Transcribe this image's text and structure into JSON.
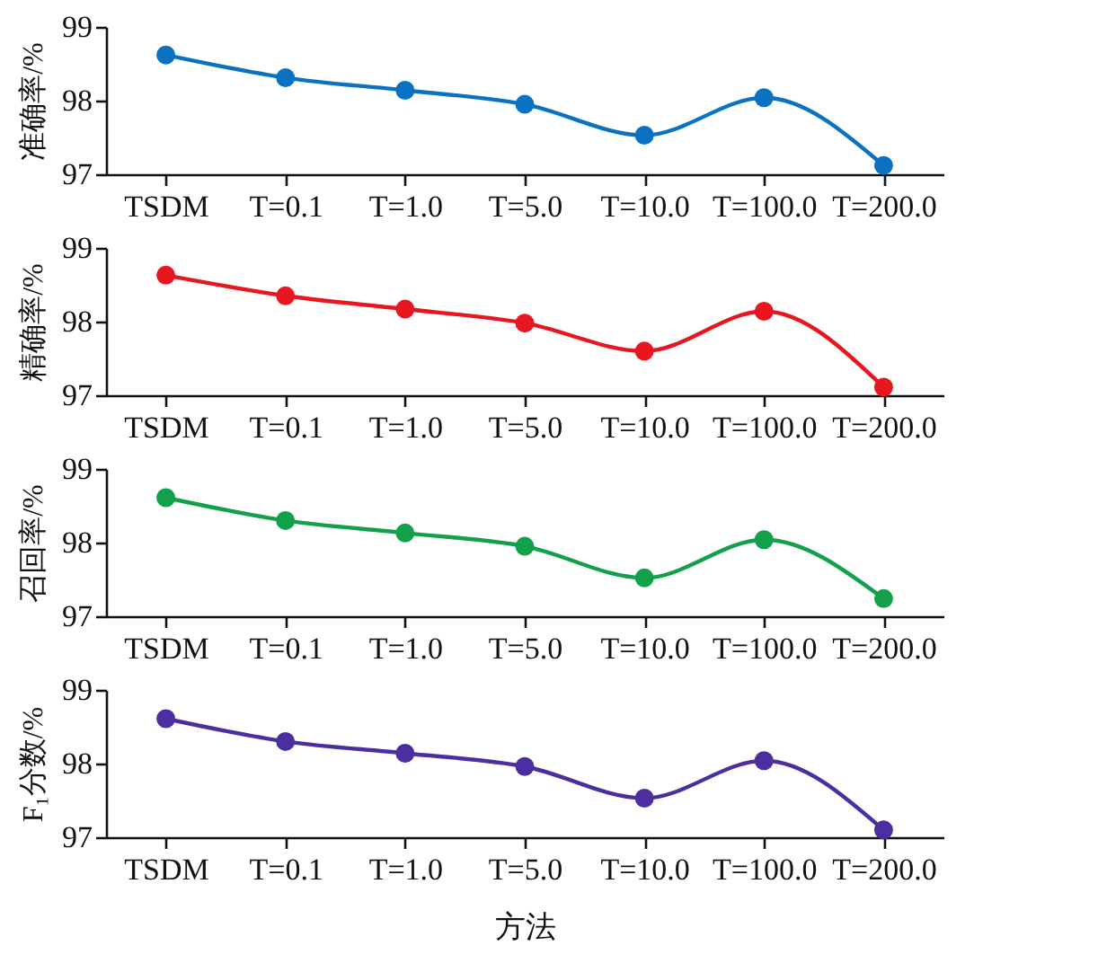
{
  "chart_data": [
    {
      "type": "line",
      "categories": [
        "TSDM",
        "T=0.1",
        "T=1.0",
        "T=5.0",
        "T=10.0",
        "T=100.0",
        "T=200.0"
      ],
      "ylabel": "准确率/%",
      "ylim": [
        97,
        99
      ],
      "yticks": [
        97,
        98,
        99
      ],
      "grid": false,
      "marker": "circle",
      "line_style": "solid",
      "series": [
        {
          "color": "#0a72c0",
          "values": [
            98.62,
            98.31,
            98.14,
            97.95,
            97.53,
            98.04,
            97.12
          ]
        }
      ]
    },
    {
      "type": "line",
      "categories": [
        "TSDM",
        "T=0.1",
        "T=1.0",
        "T=5.0",
        "T=10.0",
        "T=100.0",
        "T=200.0"
      ],
      "ylabel": "精确率/%",
      "ylim": [
        97,
        99
      ],
      "yticks": [
        97,
        98,
        99
      ],
      "grid": false,
      "marker": "circle",
      "line_style": "solid",
      "series": [
        {
          "color": "#e8161e",
          "values": [
            98.63,
            98.35,
            98.17,
            97.98,
            97.6,
            98.14,
            97.11
          ]
        }
      ]
    },
    {
      "type": "line",
      "categories": [
        "TSDM",
        "T=0.1",
        "T=1.0",
        "T=5.0",
        "T=10.0",
        "T=100.0",
        "T=200.0"
      ],
      "ylabel": "召回率/%",
      "ylim": [
        97,
        99
      ],
      "yticks": [
        97,
        98,
        99
      ],
      "grid": false,
      "marker": "circle",
      "line_style": "solid",
      "series": [
        {
          "color": "#12a04a",
          "values": [
            98.61,
            98.3,
            98.13,
            97.95,
            97.52,
            98.04,
            97.24
          ]
        }
      ]
    },
    {
      "type": "line",
      "categories": [
        "TSDM",
        "T=0.1",
        "T=1.0",
        "T=5.0",
        "T=10.0",
        "T=100.0",
        "T=200.0"
      ],
      "ylabel": "F₁分数/%",
      "xlabel": "方法",
      "ylim": [
        97,
        99
      ],
      "yticks": [
        97,
        98,
        99
      ],
      "grid": false,
      "marker": "circle",
      "line_style": "solid",
      "series": [
        {
          "color": "#4b2fa0",
          "values": [
            98.61,
            98.3,
            98.14,
            97.96,
            97.53,
            98.04,
            97.1
          ]
        }
      ]
    }
  ]
}
